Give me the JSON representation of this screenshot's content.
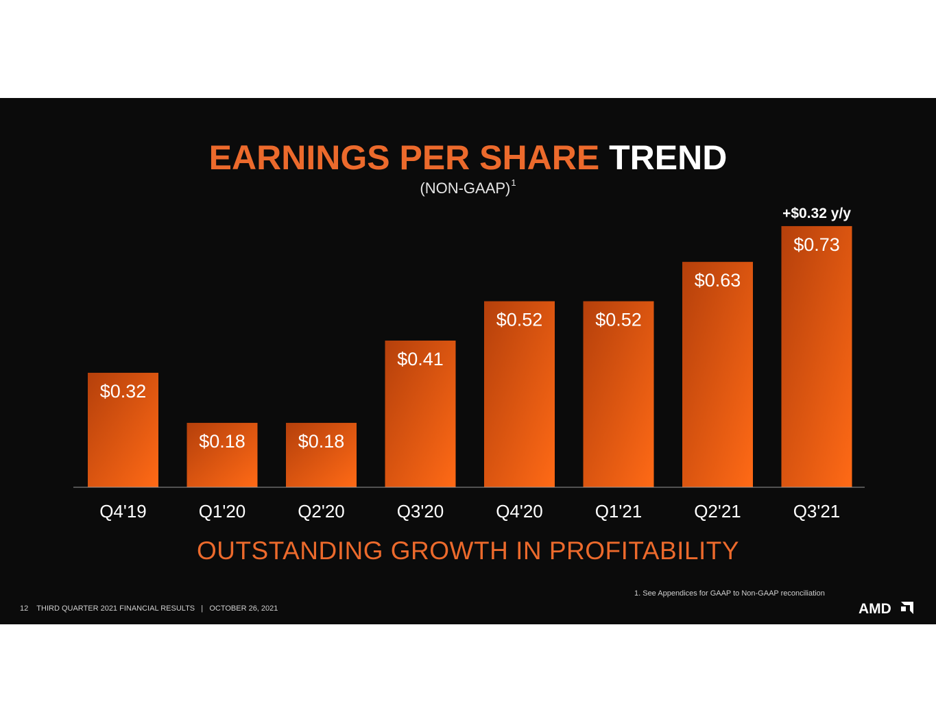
{
  "slide": {
    "title_part1": "EARNINGS PER SHARE",
    "title_part2": "TREND",
    "subtitle": "(NON-GAAP)",
    "subtitle_sup": "1",
    "tagline": "OUTSTANDING GROWTH IN PROFITABILITY",
    "footnote": "1. See Appendices for GAAP to Non-GAAP reconciliation",
    "page_number": "12",
    "footer_text": "THIRD QUARTER 2021 FINANCIAL RESULTS   |   OCTOBER 26, 2021",
    "logo_text": "AMD"
  },
  "colors": {
    "background": "#0b0b0b",
    "accent_orange": "#ec6a2c",
    "bar_dark": "#b8410c",
    "bar_light": "#ff6a16"
  },
  "chart_data": {
    "type": "bar",
    "categories": [
      "Q4'19",
      "Q1'20",
      "Q2'20",
      "Q3'20",
      "Q4'20",
      "Q1'21",
      "Q2'21",
      "Q3'21"
    ],
    "values": [
      0.32,
      0.18,
      0.18,
      0.41,
      0.52,
      0.52,
      0.63,
      0.73
    ],
    "data_labels": [
      "$0.32",
      "$0.18",
      "$0.18",
      "$0.41",
      "$0.52",
      "$0.52",
      "$0.63",
      "$0.73"
    ],
    "annotation": "+$0.32 y/y",
    "annotation_category": "Q3'21",
    "grid": false,
    "legend": "none"
  }
}
